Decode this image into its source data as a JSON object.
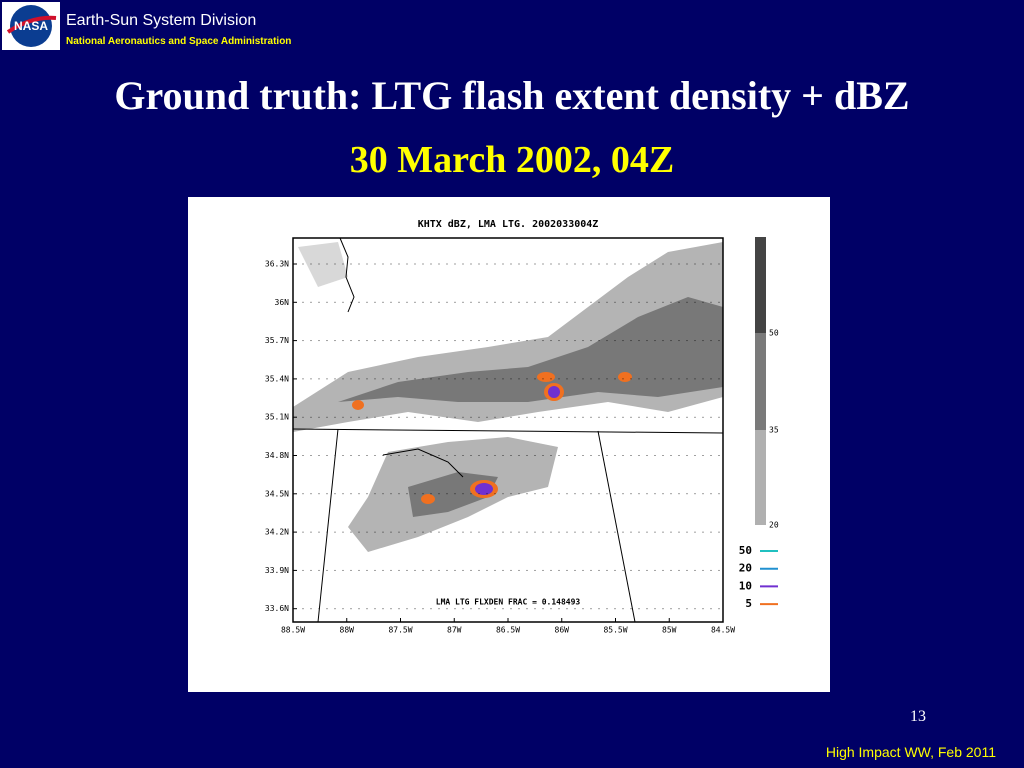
{
  "header": {
    "logo": "NASA",
    "org": "Earth-Sun System Division",
    "agency": "National Aeronautics and Space Administration"
  },
  "title": "Ground truth: LTG flash extent density + dBZ",
  "subtitle": "30 March 2002, 04Z",
  "figure": {
    "title": "KHTX dBZ, LMA LTG. 2002033004Z",
    "lat_labels": [
      "36.3N",
      "36N",
      "35.7N",
      "35.4N",
      "35.1N",
      "34.8N",
      "34.5N",
      "34.2N",
      "33.9N",
      "33.6N"
    ],
    "lon_labels": [
      "88.5W",
      "88W",
      "87.5W",
      "87W",
      "86.5W",
      "86W",
      "85.5W",
      "85W",
      "84.5W"
    ],
    "colorbar_labels": [
      "50",
      "35",
      "20"
    ],
    "legend": [
      {
        "label": "50",
        "color": "#20c0c0"
      },
      {
        "label": "20",
        "color": "#2090d0"
      },
      {
        "label": "10",
        "color": "#7030d0"
      },
      {
        "label": "5",
        "color": "#f07020"
      }
    ],
    "footer_text": "LMA LTG FLXDEN FRAC = 0.148493"
  },
  "page_number": "13",
  "footer": "High Impact WW, Feb 2011"
}
